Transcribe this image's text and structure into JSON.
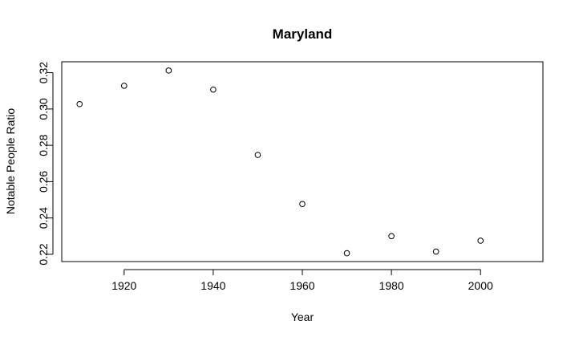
{
  "chart_data": {
    "type": "scatter",
    "title": "Maryland",
    "xlabel": "Year",
    "ylabel": "Notable People Ratio",
    "xlim": [
      1906,
      2014
    ],
    "ylim": [
      0.216,
      0.326
    ],
    "x_ticks": [
      "1920",
      "1940",
      "1960",
      "1980",
      "2000"
    ],
    "y_ticks": [
      "0.22",
      "0.24",
      "0.26",
      "0.28",
      "0.30",
      "0.32"
    ],
    "grid": false,
    "series": [
      {
        "x": [
          1910,
          1920,
          1930,
          1940,
          1950,
          1960,
          1970,
          1980,
          1990,
          2000
        ],
        "y": [
          0.3027,
          0.3128,
          0.3212,
          0.3107,
          0.2747,
          0.2477,
          0.2206,
          0.23,
          0.2215,
          0.2275
        ]
      }
    ]
  }
}
